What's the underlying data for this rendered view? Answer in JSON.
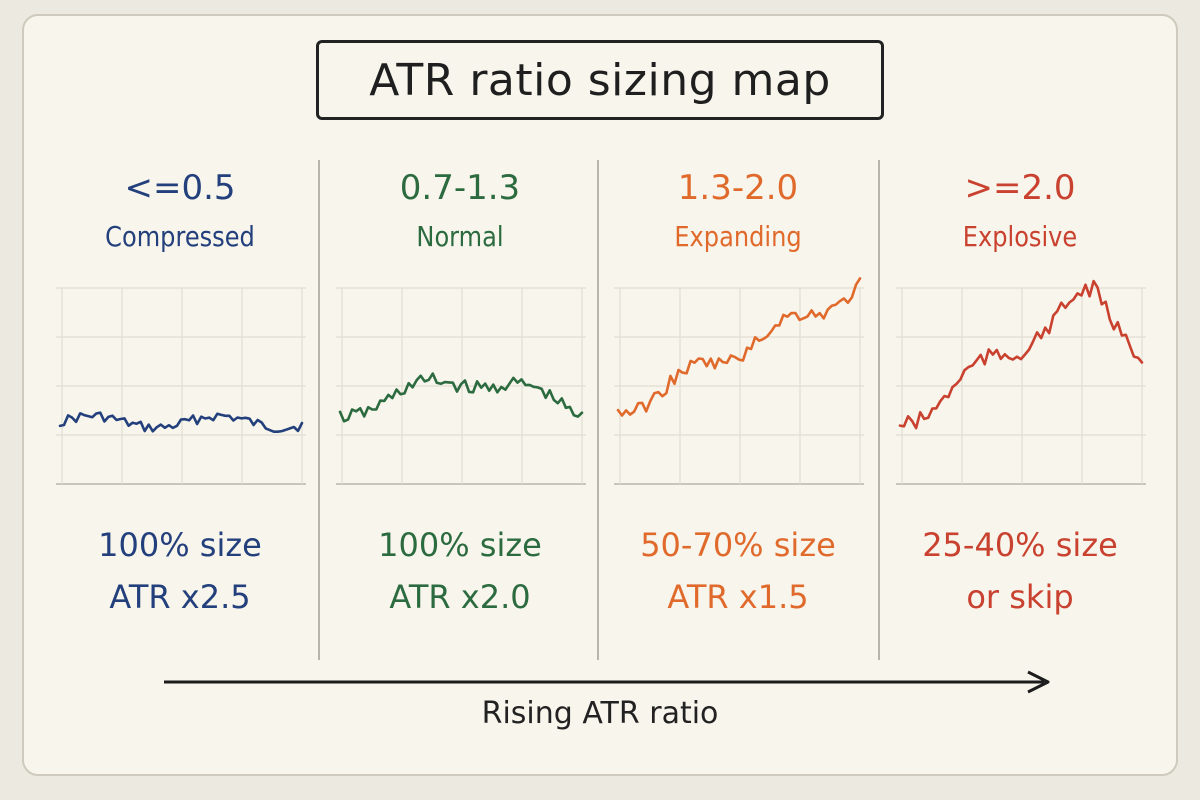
{
  "title": "ATR ratio sizing map",
  "axis_label": "Rising ATR ratio",
  "regimes": [
    {
      "ratio": "<=0.5",
      "name": "Compressed",
      "size": "100% size",
      "stop": "ATR x2.5",
      "color": "#23407c",
      "trend": "flat-low"
    },
    {
      "ratio": "0.7-1.3",
      "name": "Normal",
      "size": "100% size",
      "stop": "ATR x2.0",
      "color": "#2c6b3f",
      "trend": "moderate"
    },
    {
      "ratio": "1.3-2.0",
      "name": "Expanding",
      "size": "50-70% size",
      "stop": "ATR x1.5",
      "color": "#e06a2c",
      "trend": "strong-up"
    },
    {
      "ratio": ">=2.0",
      "name": "Explosive",
      "size": "25-40% size",
      "stop": "or skip",
      "color": "#c9412f",
      "trend": "spike-reversal"
    }
  ]
}
